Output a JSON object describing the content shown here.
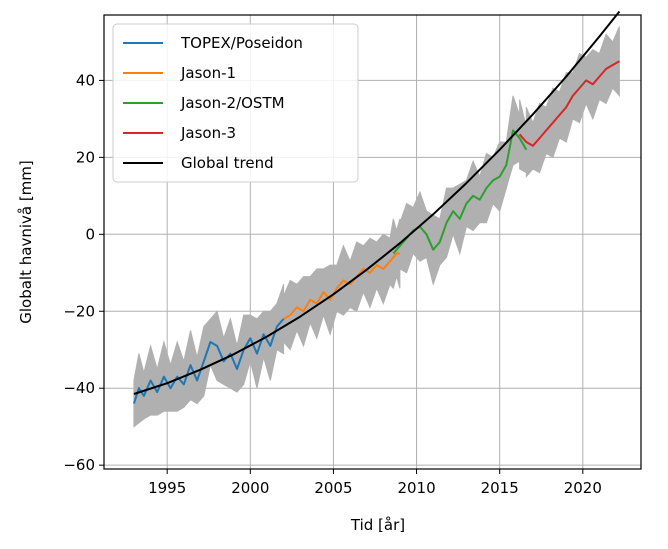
{
  "chart_data": {
    "type": "line",
    "title": "",
    "xlabel": "Tid [år]",
    "ylabel": "Globalt havnivå [mm]",
    "xlim": [
      1991.2,
      2023.5
    ],
    "ylim": [
      -61,
      57
    ],
    "grid": true,
    "legend_position": "top-left",
    "xticks": [
      1995,
      2000,
      2005,
      2010,
      2015,
      2020
    ],
    "yticks": [
      -60,
      -40,
      -20,
      0,
      20,
      40
    ],
    "xtick_labels": [
      "1995",
      "2000",
      "2005",
      "2010",
      "2015",
      "2020"
    ],
    "ytick_labels": [
      "−60",
      "−40",
      "−20",
      "0",
      "20",
      "40"
    ],
    "uncertainty_band": {
      "name": "uncertainty",
      "color": "#b0b0b0",
      "half_width": 7
    },
    "series": [
      {
        "name": "TOPEX/Poseidon",
        "color": "#1f77b4",
        "x": [
          1993.0,
          1993.3,
          1993.6,
          1994.0,
          1994.4,
          1994.8,
          1995.2,
          1995.6,
          1996.0,
          1996.4,
          1996.8,
          1997.2,
          1997.6,
          1998.0,
          1998.4,
          1998.8,
          1999.2,
          1999.6,
          2000.0,
          2000.4,
          2000.8,
          2001.2,
          2001.6,
          2002.0
        ],
        "y": [
          -44,
          -40,
          -42,
          -38,
          -41,
          -37,
          -40,
          -37,
          -39,
          -34,
          -38,
          -33,
          -28,
          -29,
          -33,
          -31,
          -35,
          -30,
          -27,
          -31,
          -26,
          -29,
          -24,
          -22
        ]
      },
      {
        "name": "Jason-1",
        "color": "#ff7f0e",
        "x": [
          2002.0,
          2002.4,
          2002.8,
          2003.2,
          2003.6,
          2004.0,
          2004.4,
          2004.8,
          2005.2,
          2005.6,
          2006.0,
          2006.4,
          2006.8,
          2007.2,
          2007.6,
          2008.0,
          2008.4,
          2008.8,
          2009.0
        ],
        "y": [
          -22,
          -21,
          -19,
          -20,
          -17,
          -18,
          -15,
          -17,
          -14,
          -12,
          -13,
          -11,
          -9,
          -10,
          -8,
          -9,
          -7,
          -5,
          -5
        ]
      },
      {
        "name": "Jason-2/OSTM",
        "color": "#2ca02c",
        "x": [
          2008.6,
          2009.0,
          2009.4,
          2009.8,
          2010.2,
          2010.6,
          2011.0,
          2011.4,
          2011.8,
          2012.2,
          2012.6,
          2013.0,
          2013.4,
          2013.8,
          2014.2,
          2014.6,
          2015.0,
          2015.4,
          2015.8,
          2016.2,
          2016.6
        ],
        "y": [
          -5,
          -3,
          -1,
          1,
          2,
          0,
          -4,
          -2,
          3,
          6,
          4,
          8,
          10,
          9,
          12,
          14,
          15,
          18,
          27,
          25,
          22
        ]
      },
      {
        "name": "Jason-3",
        "color": "#d62728",
        "x": [
          2016.2,
          2016.6,
          2017.0,
          2017.4,
          2017.8,
          2018.2,
          2018.6,
          2019.0,
          2019.4,
          2019.8,
          2020.2,
          2020.6,
          2021.0,
          2021.4,
          2021.8,
          2022.2
        ],
        "y": [
          26,
          24,
          23,
          25,
          27,
          29,
          31,
          33,
          36,
          38,
          40,
          39,
          41,
          43,
          44,
          45
        ]
      },
      {
        "name": "Global trend",
        "color": "#000000",
        "x": [
          1993.0,
          1995.0,
          1997.0,
          1999.0,
          2001.0,
          2003.0,
          2005.0,
          2007.0,
          2009.0,
          2011.0,
          2013.0,
          2015.0,
          2017.0,
          2019.0,
          2021.0,
          2022.2
        ],
        "y": [
          -41.5,
          -38.7,
          -35.2,
          -31.2,
          -26.6,
          -21.4,
          -15.6,
          -9.2,
          -2.3,
          5.2,
          13.3,
          22.0,
          31.2,
          41.0,
          51.4,
          57.9
        ]
      }
    ]
  }
}
